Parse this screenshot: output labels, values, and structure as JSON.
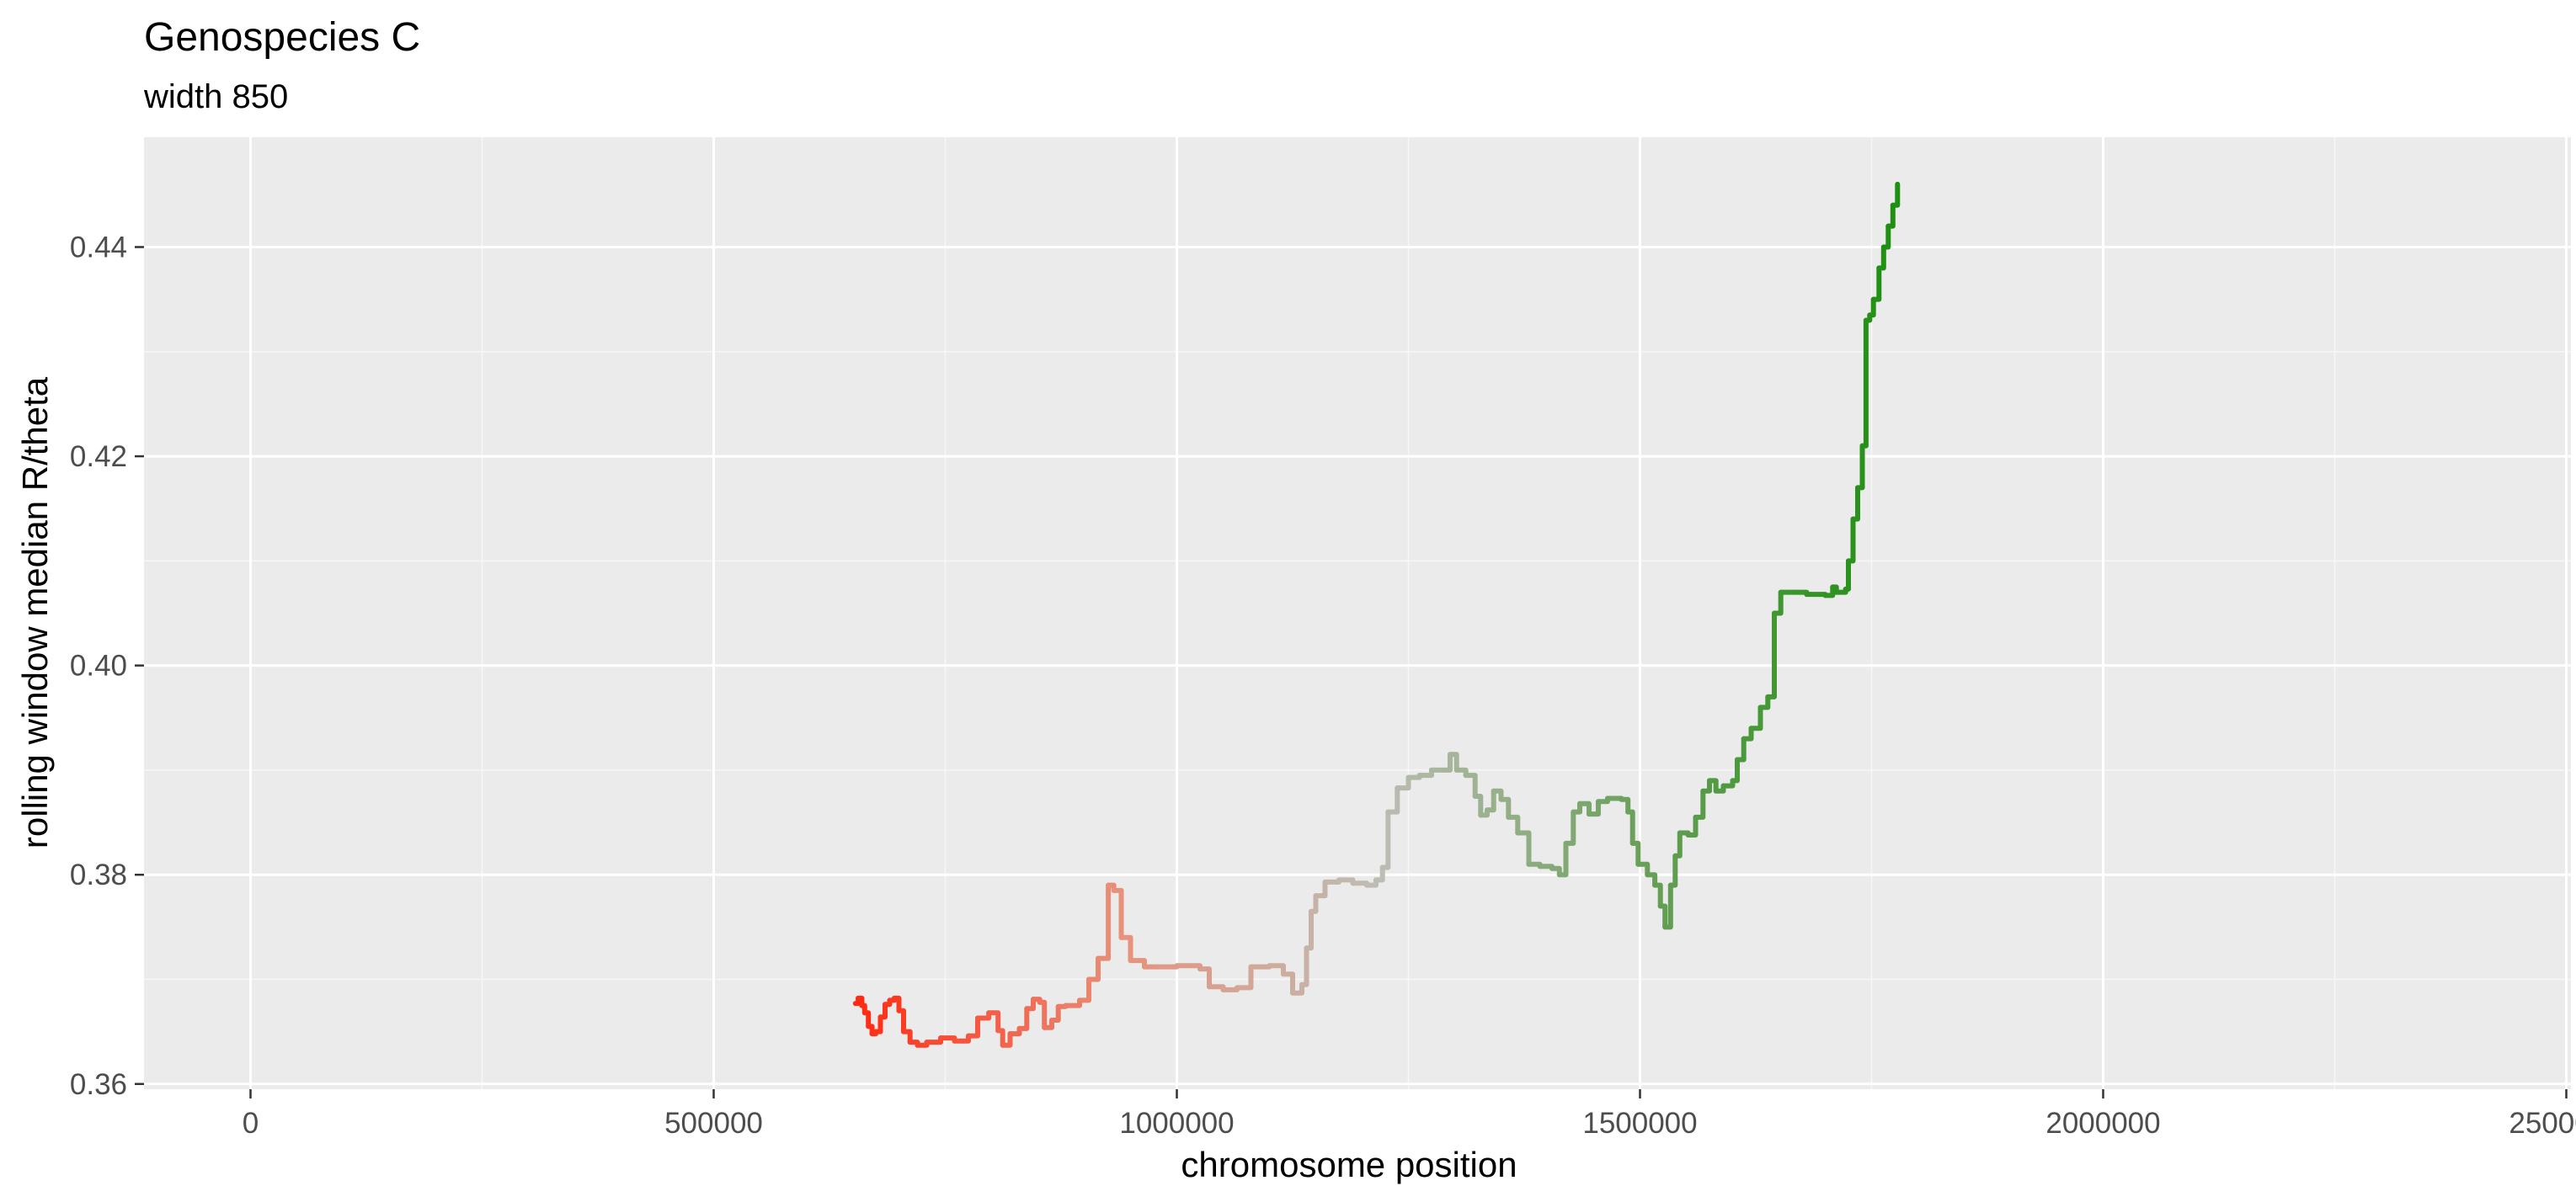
{
  "chart_data": {
    "type": "line",
    "title": "Genospecies C",
    "subtitle": "width 850",
    "xlabel": "chromosome position",
    "ylabel": "rolling window median R/theta",
    "xlim": [
      -115000,
      2505000
    ],
    "ylim": [
      0.3595,
      0.4505
    ],
    "x_ticks": [
      0,
      500000,
      1000000,
      1500000,
      2000000,
      2500000
    ],
    "x_tick_labels": [
      "0",
      "500000",
      "1000000",
      "1500000",
      "2000000",
      "2500000"
    ],
    "y_ticks": [
      0.36,
      0.38,
      0.4,
      0.42,
      0.44
    ],
    "y_tick_labels": [
      "0.36",
      "0.38",
      "0.40",
      "0.42",
      "0.44"
    ],
    "grid": true,
    "legend": "none",
    "color_gradient": [
      "#ff2a12",
      "#e8907a",
      "#bdbdb5",
      "#6aa05a",
      "#1c8f10"
    ],
    "series": [
      {
        "points": [
          [
            653000,
            0.3677
          ],
          [
            656000,
            0.3682
          ],
          [
            660000,
            0.3675
          ],
          [
            663000,
            0.3668
          ],
          [
            667000,
            0.3655
          ],
          [
            671000,
            0.3648
          ],
          [
            675000,
            0.365
          ],
          [
            680000,
            0.3664
          ],
          [
            685000,
            0.3676
          ],
          [
            690000,
            0.368
          ],
          [
            695000,
            0.3682
          ],
          [
            700000,
            0.367
          ],
          [
            705000,
            0.365
          ],
          [
            712000,
            0.364
          ],
          [
            720000,
            0.3637
          ],
          [
            730000,
            0.364
          ],
          [
            745000,
            0.3644
          ],
          [
            760000,
            0.3641
          ],
          [
            775000,
            0.3646
          ],
          [
            785000,
            0.3663
          ],
          [
            797000,
            0.3668
          ],
          [
            807000,
            0.3651
          ],
          [
            812000,
            0.3637
          ],
          [
            820000,
            0.3648
          ],
          [
            830000,
            0.3653
          ],
          [
            838000,
            0.3672
          ],
          [
            845000,
            0.3681
          ],
          [
            852000,
            0.3678
          ],
          [
            857000,
            0.3654
          ],
          [
            865000,
            0.3661
          ],
          [
            872000,
            0.3674
          ],
          [
            880000,
            0.3675
          ],
          [
            895000,
            0.368
          ],
          [
            905000,
            0.37
          ],
          [
            915000,
            0.372
          ],
          [
            922000,
            0.372
          ],
          [
            926000,
            0.379
          ],
          [
            932000,
            0.3785
          ],
          [
            940000,
            0.374
          ],
          [
            950000,
            0.3718
          ],
          [
            965000,
            0.3712
          ],
          [
            980000,
            0.3712
          ],
          [
            1000000,
            0.3713
          ],
          [
            1025000,
            0.371
          ],
          [
            1035000,
            0.3693
          ],
          [
            1050000,
            0.369
          ],
          [
            1065000,
            0.3692
          ],
          [
            1080000,
            0.3712
          ],
          [
            1100000,
            0.3713
          ],
          [
            1115000,
            0.3705
          ],
          [
            1125000,
            0.3687
          ],
          [
            1135000,
            0.3695
          ],
          [
            1140000,
            0.373
          ],
          [
            1145000,
            0.3765
          ],
          [
            1150000,
            0.378
          ],
          [
            1160000,
            0.3793
          ],
          [
            1175000,
            0.3795
          ],
          [
            1190000,
            0.3792
          ],
          [
            1205000,
            0.379
          ],
          [
            1215000,
            0.3795
          ],
          [
            1222000,
            0.3807
          ],
          [
            1228000,
            0.386
          ],
          [
            1238000,
            0.3883
          ],
          [
            1250000,
            0.3893
          ],
          [
            1262000,
            0.3895
          ],
          [
            1275000,
            0.39
          ],
          [
            1288000,
            0.39
          ],
          [
            1295000,
            0.3915
          ],
          [
            1302000,
            0.39
          ],
          [
            1312000,
            0.3895
          ],
          [
            1322000,
            0.3875
          ],
          [
            1328000,
            0.3857
          ],
          [
            1335000,
            0.3862
          ],
          [
            1342000,
            0.388
          ],
          [
            1350000,
            0.3872
          ],
          [
            1358000,
            0.3855
          ],
          [
            1368000,
            0.384
          ],
          [
            1380000,
            0.381
          ],
          [
            1392000,
            0.3808
          ],
          [
            1405000,
            0.3806
          ],
          [
            1413000,
            0.38
          ],
          [
            1420000,
            0.383
          ],
          [
            1428000,
            0.386
          ],
          [
            1435000,
            0.3868
          ],
          [
            1445000,
            0.3858
          ],
          [
            1455000,
            0.387
          ],
          [
            1465000,
            0.3873
          ],
          [
            1480000,
            0.3872
          ],
          [
            1487000,
            0.386
          ],
          [
            1492000,
            0.383
          ],
          [
            1498000,
            0.381
          ],
          [
            1508000,
            0.38
          ],
          [
            1516000,
            0.379
          ],
          [
            1522000,
            0.377
          ],
          [
            1527000,
            0.375
          ],
          [
            1533000,
            0.379
          ],
          [
            1538000,
            0.3818
          ],
          [
            1543000,
            0.384
          ],
          [
            1552000,
            0.3838
          ],
          [
            1560000,
            0.3855
          ],
          [
            1568000,
            0.388
          ],
          [
            1575000,
            0.389
          ],
          [
            1582000,
            0.388
          ],
          [
            1590000,
            0.3885
          ],
          [
            1600000,
            0.389
          ],
          [
            1605000,
            0.391
          ],
          [
            1612000,
            0.393
          ],
          [
            1620000,
            0.394
          ],
          [
            1630000,
            0.396
          ],
          [
            1638000,
            0.397
          ],
          [
            1645000,
            0.405
          ],
          [
            1652000,
            0.407
          ],
          [
            1665000,
            0.407
          ],
          [
            1680000,
            0.4068
          ],
          [
            1700000,
            0.4067
          ],
          [
            1708000,
            0.4075
          ],
          [
            1712000,
            0.407
          ],
          [
            1722000,
            0.4073
          ],
          [
            1725000,
            0.41
          ],
          [
            1730000,
            0.414
          ],
          [
            1735000,
            0.417
          ],
          [
            1740000,
            0.421
          ],
          [
            1744000,
            0.433
          ],
          [
            1748000,
            0.4335
          ],
          [
            1752000,
            0.435
          ],
          [
            1758000,
            0.438
          ],
          [
            1763000,
            0.44
          ],
          [
            1768000,
            0.442
          ],
          [
            1773000,
            0.444
          ],
          [
            1778000,
            0.446
          ]
        ]
      }
    ]
  }
}
